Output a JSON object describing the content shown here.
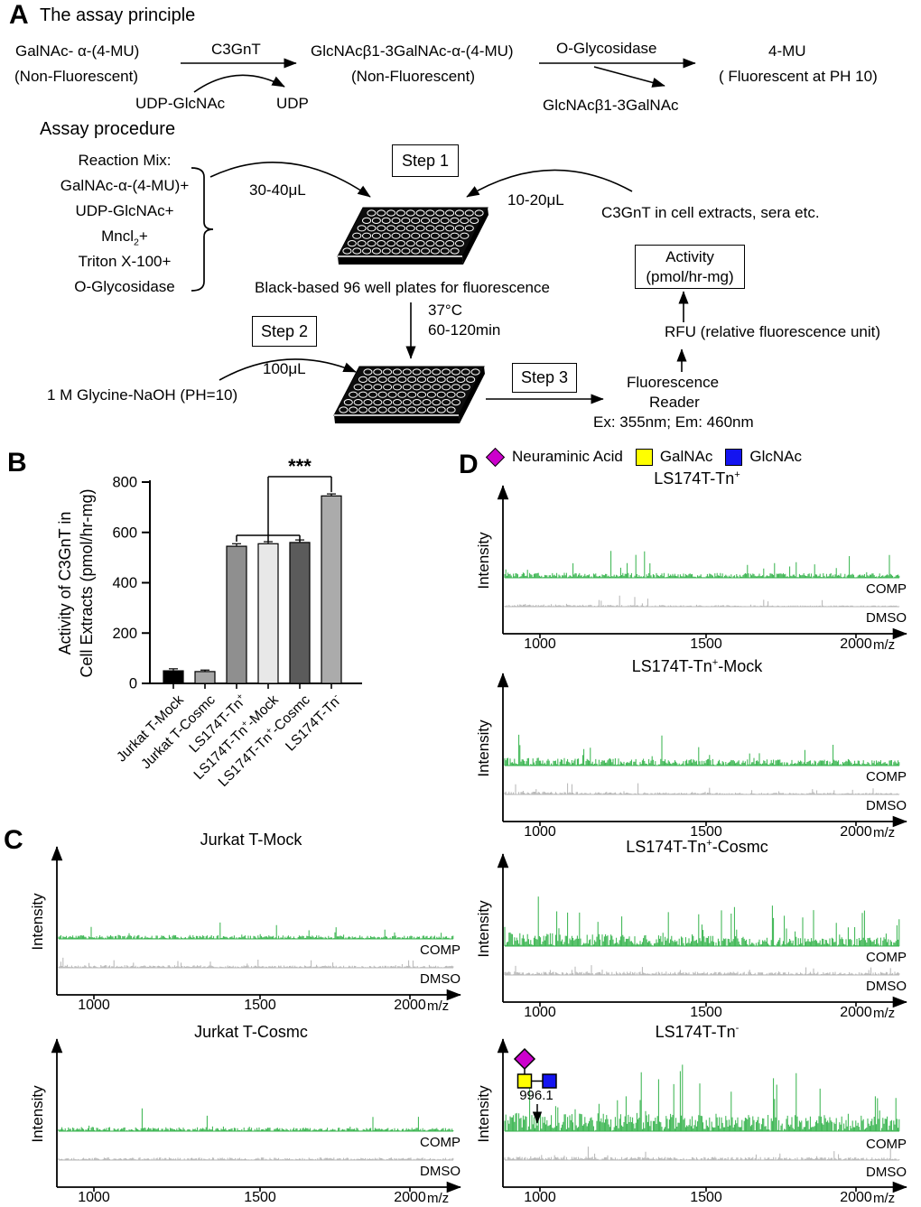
{
  "panelA": {
    "label": "A",
    "title": "The assay principle",
    "scheme": {
      "substrate": "GalNAc- α-(4-MU)",
      "substrate_note": "(Non-Fluorescent)",
      "enzyme1": "C3GnT",
      "donor": "UDP-GlcNAc",
      "donor_product": "UDP",
      "intermediate": "GlcNAcβ1-3GalNAc-α-(4-MU)",
      "intermediate_note": "(Non-Fluorescent)",
      "enzyme2": "O-Glycosidase",
      "released_glycan": "GlcNAcβ1-3GalNAc",
      "final_product": "4-MU",
      "final_product_note": "( Fluorescent at PH 10)"
    },
    "procedure": {
      "title": "Assay procedure",
      "mix_lines": [
        [
          {
            "t": "Reaction Mix:"
          }
        ],
        [
          {
            "t": "GalNAc-α-(4-MU)+"
          }
        ],
        [
          {
            "t": "UDP-GlcNAc+"
          }
        ],
        [
          {
            "t": "Mncl"
          },
          {
            "t": "2",
            "sub": true
          },
          {
            "t": "+"
          }
        ],
        [
          {
            "t": "Triton X-100+"
          }
        ],
        [
          {
            "t": "O-Glycosidase"
          }
        ]
      ],
      "step1": "Step 1",
      "step2": "Step 2",
      "step3": "Step 3",
      "vol_mix": "30-40μL",
      "vol_sample": "10-20μL",
      "vol_stop": "100μL",
      "sample_source": "C3GnT in cell extracts, sera etc.",
      "plate_caption": "Black-based 96 well plates for fluorescence",
      "incubation_temp": "37°C",
      "incubation_time": "60-120min",
      "stop_buffer": "1 M Glycine-NaOH (PH=10)",
      "activity_line1": "Activity",
      "activity_line2": "(pmol/hr-mg)",
      "rfu": "RFU (relative fluorescence unit)",
      "reader_line1": "Fluorescence",
      "reader_line2": "Reader",
      "reader_params": "Ex: 355nm; Em: 460nm"
    }
  },
  "panelB": {
    "label": "B"
  },
  "panelC": {
    "label": "C"
  },
  "panelD": {
    "label": "D",
    "legend": [
      {
        "label": "Neuraminic Acid",
        "shape": "diamond",
        "color": "#cc00cc"
      },
      {
        "label": "GalNAc",
        "shape": "square",
        "color": "#ffff00"
      },
      {
        "label": "GlcNAc",
        "shape": "square",
        "color": "#1414f0"
      }
    ]
  },
  "chart_data": [
    {
      "id": "B",
      "type": "bar",
      "ylabel_line1": "Activity of C3GnT in",
      "ylabel_line2": "Cell Extracts (pmol/hr-mg)",
      "ylim": [
        0,
        800
      ],
      "yticks": [
        0,
        200,
        400,
        600,
        800
      ],
      "categories": [
        [
          {
            "t": "Jurkat T-Mock"
          }
        ],
        [
          {
            "t": "Jurkat T-Cosmc"
          }
        ],
        [
          {
            "t": "LS174T-Tn"
          },
          {
            "t": "+",
            "sup": true
          }
        ],
        [
          {
            "t": "LS174T-Tn"
          },
          {
            "t": "+",
            "sup": true
          },
          {
            "t": "-Mock"
          }
        ],
        [
          {
            "t": "LS174T-Tn"
          },
          {
            "t": "+",
            "sup": true
          },
          {
            "t": "-Cosmc"
          }
        ],
        [
          {
            "t": "LS174T-Tn"
          },
          {
            "t": "-",
            "sup": true
          }
        ]
      ],
      "values": [
        50,
        47,
        545,
        555,
        560,
        745
      ],
      "errors": [
        8,
        6,
        10,
        8,
        10,
        8
      ],
      "bar_colors": [
        "#000000",
        "#a6a6a6",
        "#8f8f8f",
        "#e8e8e8",
        "#5b5b5b",
        "#ababab"
      ],
      "significance": {
        "label": "***",
        "from_bars": [
          2,
          3,
          4
        ],
        "to_bar": 5
      },
      "grid": false,
      "legend_position": "none"
    },
    {
      "id": "C1",
      "type": "mass-spectrum",
      "title": [
        {
          "t": "Jurkat T-Mock"
        }
      ],
      "xlabel": "m/z",
      "ylabel": "Intensity",
      "xlim": [
        900,
        2100
      ],
      "xticks": [
        "1000",
        "1500",
        "2000"
      ],
      "series": [
        {
          "name": "COMP",
          "color": "#33b24a",
          "profile": {
            "seed": 11,
            "noise": 0.18,
            "spike_p": 0.05,
            "amplitude": 0.9,
            "decay": 0.5,
            "max_h": 26
          }
        },
        {
          "name": "DMSO",
          "color": "#b5b5b5",
          "profile": {
            "seed": 12,
            "noise": 0.2,
            "spike_p": 0.06,
            "amplitude": 0.8,
            "decay": 0.7,
            "max_h": 16
          }
        }
      ]
    },
    {
      "id": "C2",
      "type": "mass-spectrum",
      "title": [
        {
          "t": "Jurkat T-Cosmc"
        }
      ],
      "xlabel": "m/z",
      "ylabel": "Intensity",
      "xlim": [
        900,
        2100
      ],
      "xticks": [
        "1000",
        "1500",
        "2000"
      ],
      "series": [
        {
          "name": "COMP",
          "color": "#33b24a",
          "profile": {
            "seed": 21,
            "noise": 0.12,
            "spike_p": 0.045,
            "amplitude": 0.95,
            "decay": 0.6,
            "max_h": 42
          }
        },
        {
          "name": "DMSO",
          "color": "#b5b5b5",
          "profile": {
            "seed": 22,
            "noise": 0.3,
            "spike_p": 0.04,
            "amplitude": 0.5,
            "decay": 0.2,
            "max_h": 10
          }
        }
      ]
    },
    {
      "id": "D1",
      "type": "mass-spectrum",
      "title": [
        {
          "t": "LS174T-Tn"
        },
        {
          "t": "+",
          "sup": true
        }
      ],
      "xlabel": "m/z",
      "ylabel": "Intensity",
      "xlim": [
        900,
        2100
      ],
      "xticks": [
        "1000",
        "1500",
        "2000"
      ],
      "series": [
        {
          "name": "COMP",
          "color": "#33b24a",
          "profile": {
            "seed": 31,
            "noise": 0.15,
            "spike_p": 0.05,
            "amplitude": 0.85,
            "decay": 0.4,
            "max_h": 40
          }
        },
        {
          "name": "DMSO",
          "color": "#b5b5b5",
          "profile": {
            "seed": 32,
            "noise": 0.12,
            "spike_p": 0.05,
            "amplitude": 0.8,
            "decay": 1.8,
            "max_h": 22
          }
        }
      ]
    },
    {
      "id": "D2",
      "type": "mass-spectrum",
      "title": [
        {
          "t": "LS174T-Tn"
        },
        {
          "t": "+",
          "sup": true
        },
        {
          "t": "-Mock"
        }
      ],
      "xlabel": "m/z",
      "ylabel": "Intensity",
      "xlim": [
        900,
        2100
      ],
      "xticks": [
        "1000",
        "1500",
        "2000"
      ],
      "series": [
        {
          "name": "COMP",
          "color": "#33b24a",
          "profile": {
            "seed": 41,
            "noise": 0.18,
            "spike_p": 0.07,
            "amplitude": 0.9,
            "decay": 0.9,
            "max_h": 52
          }
        },
        {
          "name": "DMSO",
          "color": "#b5b5b5",
          "profile": {
            "seed": 42,
            "noise": 0.12,
            "spike_p": 0.07,
            "amplitude": 0.95,
            "decay": 2.6,
            "max_h": 30
          }
        }
      ]
    },
    {
      "id": "D3",
      "type": "mass-spectrum",
      "title": [
        {
          "t": "LS174T-Tn"
        },
        {
          "t": "+",
          "sup": true
        },
        {
          "t": "-Cosmc"
        }
      ],
      "xlabel": "m/z",
      "ylabel": "Intensity",
      "xlim": [
        900,
        2100
      ],
      "xticks": [
        "1000",
        "1500",
        "2000"
      ],
      "series": [
        {
          "name": "COMP",
          "color": "#33b24a",
          "profile": {
            "seed": 51,
            "noise": 0.2,
            "spike_p": 0.11,
            "amplitude": 1.0,
            "decay": 1.1,
            "max_h": 78
          }
        },
        {
          "name": "DMSO",
          "color": "#b5b5b5",
          "profile": {
            "seed": 52,
            "noise": 0.2,
            "spike_p": 0.08,
            "amplitude": 0.6,
            "decay": 0.3,
            "max_h": 20
          }
        }
      ]
    },
    {
      "id": "D4",
      "type": "mass-spectrum",
      "title": [
        {
          "t": "LS174T-Tn"
        },
        {
          "t": "-",
          "sup": true
        }
      ],
      "xlabel": "m/z",
      "ylabel": "Intensity",
      "xlim": [
        900,
        2100
      ],
      "xticks": [
        "1000",
        "1500",
        "2000"
      ],
      "series": [
        {
          "name": "COMP",
          "color": "#33b24a",
          "profile": {
            "seed": 61,
            "noise": 0.22,
            "spike_p": 0.11,
            "amplitude": 1.0,
            "decay": 0.35,
            "max_h": 95
          }
        },
        {
          "name": "DMSO",
          "color": "#b5b5b5",
          "profile": {
            "seed": 62,
            "noise": 0.15,
            "spike_p": 0.05,
            "amplitude": 0.8,
            "decay": 0.5,
            "max_h": 26
          }
        }
      ],
      "annotation": {
        "peak_label": "996.1",
        "glycan_colors": {
          "neuraminic_acid": "#cc00cc",
          "galnac": "#ffff00",
          "glcnac": "#1414f0"
        }
      }
    }
  ]
}
